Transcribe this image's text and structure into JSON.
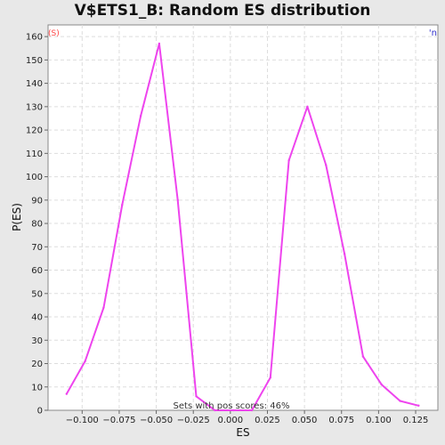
{
  "chart_data": {
    "type": "line",
    "title": "V$ETS1_B: Random ES distribution",
    "xlabel": "ES",
    "ylabel": "P(ES)",
    "xlim": [
      -0.123,
      0.14
    ],
    "ylim": [
      0,
      165
    ],
    "grid": true,
    "legend": "none",
    "corner_labels": {
      "left": "(S)",
      "right": "'n"
    },
    "annotation": "Sets with pos scores: 46%",
    "x_ticks": [
      -0.1,
      -0.075,
      -0.05,
      -0.025,
      0.0,
      0.025,
      0.05,
      0.075,
      0.1,
      0.125
    ],
    "x_tick_labels": [
      "−0.100",
      "−0.075",
      "−0.050",
      "−0.025",
      "0.000",
      "0.025",
      "0.050",
      "0.075",
      "0.100",
      "0.125"
    ],
    "y_ticks": [
      0,
      10,
      20,
      30,
      40,
      50,
      60,
      70,
      80,
      90,
      100,
      110,
      120,
      130,
      140,
      150,
      160
    ],
    "y_tick_labels": [
      "0",
      "10",
      "20",
      "30",
      "40",
      "50",
      "60",
      "70",
      "80",
      "90",
      "100",
      "110",
      "120",
      "130",
      "140",
      "150",
      "160"
    ],
    "series": [
      {
        "color": "#ee44ee",
        "x": [
          -0.1105,
          -0.098,
          -0.0855,
          -0.073,
          -0.0605,
          -0.048,
          -0.0355,
          -0.023,
          -0.0105,
          0.002,
          0.0145,
          0.027,
          0.0395,
          0.052,
          0.0645,
          0.077,
          0.0895,
          0.102,
          0.1145,
          0.127
        ],
        "y": [
          7,
          21,
          44,
          88,
          126,
          157,
          90,
          6,
          0,
          0,
          0,
          14,
          107,
          130,
          105,
          67,
          23,
          11,
          4,
          2
        ]
      }
    ]
  }
}
